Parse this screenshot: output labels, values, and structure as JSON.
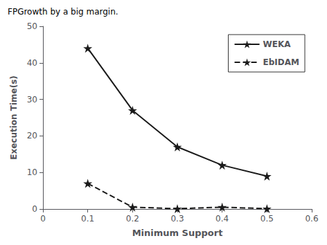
{
  "chart_data": {
    "type": "line",
    "title": "FPGrowth by a big margin.",
    "x_label": "Minimum Support",
    "y_label": "Execution Time(s)",
    "x": [
      0.1,
      0.2,
      0.3,
      0.4,
      0.5
    ],
    "series": [
      {
        "name": "WEKA",
        "color": "#1a1a1a",
        "values": [
          44,
          27,
          17,
          12,
          9
        ],
        "marker": "star",
        "line_style": "solid"
      },
      {
        "name": "EbIDAM",
        "color": "#1a1a1a",
        "values": [
          7,
          0.5,
          0.1,
          0.5,
          0.1
        ],
        "marker": "star",
        "line_style": "dashed"
      }
    ],
    "xlim": [
      0,
      0.6
    ],
    "ylim": [
      0,
      50
    ],
    "xticks": [
      0,
      0.1,
      0.2,
      0.3,
      0.4,
      0.5,
      0.6
    ],
    "yticks": [
      0,
      10,
      20,
      30,
      40,
      50
    ],
    "grid": false,
    "legend": "upper right"
  }
}
